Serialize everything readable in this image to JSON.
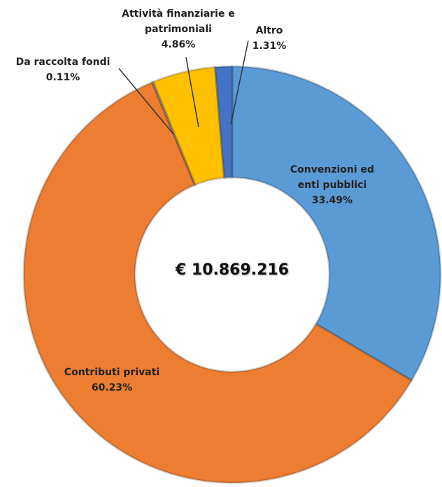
{
  "chart_data": {
    "type": "donut",
    "center_label": "€ 10.869.216",
    "categories": [
      "Convenzioni ed enti pubblici",
      "Contributi privati",
      "Da raccolta fondi",
      "Attività finanziarie e patrimoniali",
      "Altro"
    ],
    "values": [
      33.49,
      60.23,
      0.11,
      4.86,
      1.31
    ],
    "value_labels": [
      "33.49%",
      "60.23%",
      "0.11%",
      "4.86%",
      "1.31%"
    ],
    "colors": [
      "#5b9bd5",
      "#ed7d31",
      "#a5a5a5",
      "#ffc000",
      "#4472c4"
    ]
  }
}
